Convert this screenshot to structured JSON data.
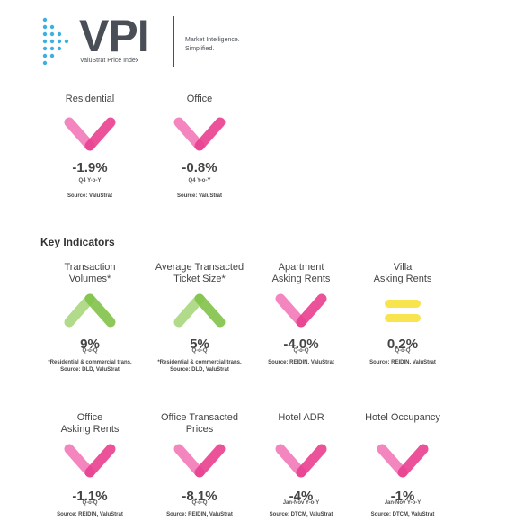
{
  "header": {
    "title": "VPI",
    "subtitle": "ValuStrat Price Index",
    "tagline": [
      "Market Intelligence.",
      "Simplified."
    ]
  },
  "summary": [
    {
      "label": [
        "Residential"
      ],
      "value": "-1.9%",
      "period": "Q4 Y-o-Y",
      "notes": [
        "Source: ValuStrat"
      ],
      "icon": "down"
    },
    {
      "label": [
        "Office"
      ],
      "value": "-0.8%",
      "period": "Q4 Y-o-Y",
      "notes": [
        "Source: ValuStrat"
      ],
      "icon": "down"
    }
  ],
  "key_indicators": {
    "heading": "Key Indicators",
    "items": [
      {
        "label": [
          "Transaction",
          "Volumes*"
        ],
        "value": "9%",
        "period": "Q-o-Q",
        "notes": [
          "*Residential & commercial trans.",
          "Source: DLD, ValuStrat"
        ],
        "icon": "up"
      },
      {
        "label": [
          "Average Transacted",
          "Ticket Size*"
        ],
        "value": "5%",
        "period": "Q-o-Q",
        "notes": [
          "*Residential & commercial trans.",
          "Source: DLD, ValuStrat"
        ],
        "icon": "up"
      },
      {
        "label": [
          "Apartment",
          "Asking Rents"
        ],
        "value": "-4.0%",
        "period": "Q-o-Q",
        "notes": [
          "Source: REIDIN, ValuStrat"
        ],
        "icon": "down"
      },
      {
        "label": [
          "Villa",
          "Asking Rents"
        ],
        "value": "0.2%",
        "period": "Q-o-Q",
        "notes": [
          "Source: REIDIN, ValuStrat"
        ],
        "icon": "flat"
      },
      {
        "label": [
          "Office",
          "Asking Rents"
        ],
        "value": "-1.1%",
        "period": "Q-o-Q",
        "notes": [
          "Source: REIDIN, ValuStrat"
        ],
        "icon": "down"
      },
      {
        "label": [
          "Office Transacted",
          "Prices"
        ],
        "value": "-8.1%",
        "period": "Q-o-Q",
        "notes": [
          "Source: REIDIN, ValuStrat"
        ],
        "icon": "down"
      },
      {
        "label": [
          "Hotel ADR"
        ],
        "value": "-4%",
        "period": "Jan-Nov Y-o-Y",
        "notes": [
          "Source: DTCM, ValuStrat"
        ],
        "icon": "down"
      },
      {
        "label": [
          "Hotel Occupancy"
        ],
        "value": "-1%",
        "period": "Jan-Nov Y-o-Y",
        "notes": [
          "Source: DTCM, ValuStrat"
        ],
        "icon": "down"
      }
    ]
  }
}
